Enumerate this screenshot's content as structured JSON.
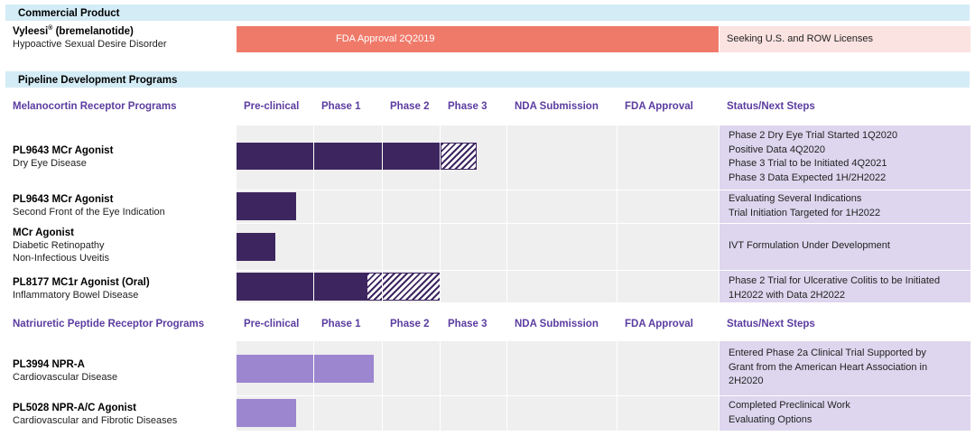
{
  "commercial": {
    "section_title": "Commercial Product",
    "product_name": "Vyleesi",
    "product_reg": "®",
    "product_generic": " (bremelanotide)",
    "indication": "Hypoactive Sexual Desire Disorder",
    "bar_label": "FDA Approval 2Q2019",
    "status": "Seeking U.S. and ROW Licenses"
  },
  "pipeline": {
    "section_title": "Pipeline Development Programs"
  },
  "columns": [
    "Pre-clinical",
    "Phase 1",
    "Phase 2",
    "Phase 3",
    "NDA Submission",
    "FDA Approval",
    "Status/Next Steps"
  ],
  "group1": {
    "title": "Melanocortin Receptor Programs",
    "rows": [
      {
        "name": "PL9643 MCr Agonist",
        "sub1": "Dry Eye Disease",
        "sub2": "",
        "status": [
          "Phase 2 Dry Eye Trial Started 1Q2020",
          "Positive Data 4Q2020",
          "Phase 3 Trial to be Initiated 4Q2021",
          "Phase 3 Data Expected 1H/2H2022"
        ]
      },
      {
        "name": "PL9643 MCr Agonist",
        "sub1": "Second Front of the Eye Indication",
        "sub2": "",
        "status": [
          "Evaluating Several Indications",
          "Trial Initiation Targeted for 1H2022"
        ]
      },
      {
        "name": "MCr Agonist",
        "sub1": "Diabetic Retinopathy",
        "sub2": "Non-Infectious Uveitis",
        "status": [
          "IVT Formulation Under Development"
        ]
      },
      {
        "name": "PL8177 MC1r Agonist (Oral)",
        "sub1": "Inflammatory Bowel Disease",
        "sub2": "",
        "status": [
          "Phase 2 Trial for Ulcerative Colitis to be Initiated",
          "1H2022 with Data 2H2022"
        ]
      }
    ]
  },
  "group2": {
    "title": "Natriuretic Peptide Receptor Programs",
    "rows": [
      {
        "name": "PL3994 NPR-A",
        "sub1": "Cardiovascular Disease",
        "sub2": "",
        "status": [
          "Entered Phase 2a Clinical Trial Supported by",
          "Grant from the American Heart Association in",
          "2H2020"
        ]
      },
      {
        "name": "PL5028 NPR-A/C Agonist",
        "sub1": "Cardiovascular and Fibrotic Diseases",
        "sub2": "",
        "status": [
          "Completed Preclinical Work",
          "Evaluating Options"
        ]
      }
    ]
  },
  "colors": {
    "header_band": "#d4ecf6",
    "approval_bar": "#f07a6a",
    "approval_status_bg": "#fbe3e1",
    "dark_bar": "#3d2660",
    "light_bar": "#9b86cf",
    "grid_bg": "#efefef",
    "status_bg": "#ddd6ee",
    "column_header": "#5b3ca0"
  },
  "chart_data": {
    "type": "table",
    "title": "Pipeline Development Programs",
    "stages": [
      "Pre-clinical",
      "Phase 1",
      "Phase 2",
      "Phase 3",
      "NDA Submission",
      "FDA Approval"
    ],
    "programs": [
      {
        "program": "Vyleesi (bremelanotide)",
        "indication": "Hypoactive Sexual Desire Disorder",
        "completed_through": "FDA Approval",
        "planned_through": null,
        "bar_label": "FDA Approval 2Q2019"
      },
      {
        "program": "PL9643 MCr Agonist",
        "indication": "Dry Eye Disease",
        "completed_through": "Phase 2",
        "planned_through": "Phase 3"
      },
      {
        "program": "PL9643 MCr Agonist",
        "indication": "Second Front of the Eye Indication",
        "completed_through": "Pre-clinical",
        "planned_through": null
      },
      {
        "program": "MCr Agonist",
        "indication": "Diabetic Retinopathy / Non-Infectious Uveitis",
        "completed_through": "Pre-clinical (partial)",
        "planned_through": null
      },
      {
        "program": "PL8177 MC1r Agonist (Oral)",
        "indication": "Inflammatory Bowel Disease",
        "completed_through": "Phase 1 (partial)",
        "planned_through": "Phase 2"
      },
      {
        "program": "PL3994 NPR-A",
        "indication": "Cardiovascular Disease",
        "completed_through": "Phase 1",
        "planned_through": null
      },
      {
        "program": "PL5028 NPR-A/C Agonist",
        "indication": "Cardiovascular and Fibrotic Diseases",
        "completed_through": "Pre-clinical",
        "planned_through": null
      }
    ]
  }
}
